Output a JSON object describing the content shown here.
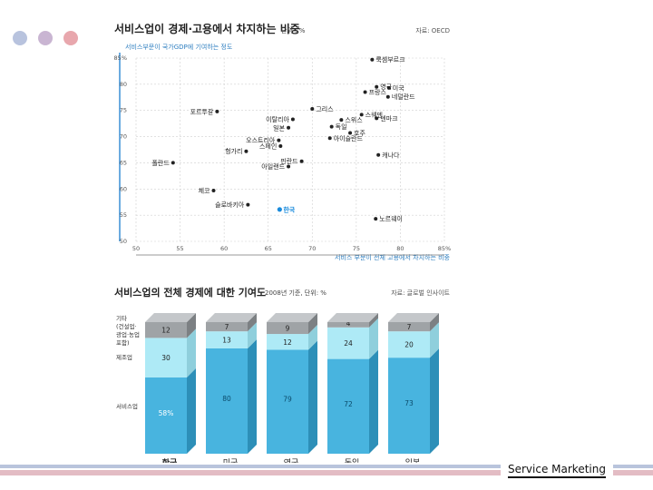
{
  "colors": {
    "dot1": "#b8c3de",
    "dot2": "#c9b5d2",
    "dot3": "#e8a7ad",
    "accent": "#3a8fd6",
    "bar_service": "#48b4df",
    "bar_manufacturing": "#aeeaf6",
    "bar_other": "#9fa3a6",
    "korea": "#1a8bdc"
  },
  "footer": {
    "text": "Service Marketing"
  },
  "chart_data": [
    {
      "type": "scatter",
      "title": "서비스업이 경제·고용에서 차지하는 비중",
      "unit": "단위 : %",
      "source": "자료: OECD",
      "ylabel": "서비스부문이 국가GDP에 기여하는 정도",
      "xlabel": "서비스 부문이 전체 고용에서 차지하는 비중",
      "xlim": [
        50,
        85
      ],
      "ylim": [
        50,
        85
      ],
      "x_ticks": [
        "50",
        "55",
        "60",
        "65",
        "70",
        "75",
        "80",
        "85%"
      ],
      "y_ticks": [
        "85%",
        "80",
        "75",
        "70",
        "65",
        "60",
        "55",
        "50"
      ],
      "grid": true,
      "points": [
        {
          "label": "룩셈부르크",
          "x": 76.8,
          "y": 84.7
        },
        {
          "label": "영국",
          "x": 77.3,
          "y": 79.5
        },
        {
          "label": "미국",
          "x": 78.7,
          "y": 79.3
        },
        {
          "label": "프랑스",
          "x": 76.0,
          "y": 78.5
        },
        {
          "label": "네덜란드",
          "x": 78.6,
          "y": 77.6
        },
        {
          "label": "포르투갈",
          "x": 59.2,
          "y": 74.8
        },
        {
          "label": "그리스",
          "x": 70.0,
          "y": 75.3
        },
        {
          "label": "스웨덴",
          "x": 75.6,
          "y": 74.2
        },
        {
          "label": "덴마크",
          "x": 77.3,
          "y": 73.5
        },
        {
          "label": "이탈리아",
          "x": 67.8,
          "y": 73.3
        },
        {
          "label": "스위스",
          "x": 73.3,
          "y": 73.2
        },
        {
          "label": "일본",
          "x": 67.3,
          "y": 71.7
        },
        {
          "label": "독일",
          "x": 72.2,
          "y": 71.9
        },
        {
          "label": "호주",
          "x": 74.3,
          "y": 70.7
        },
        {
          "label": "오스트리아",
          "x": 66.2,
          "y": 69.3
        },
        {
          "label": "스페인",
          "x": 66.4,
          "y": 68.2
        },
        {
          "label": "아이슬란드",
          "x": 72.0,
          "y": 69.7
        },
        {
          "label": "헝가리",
          "x": 62.5,
          "y": 67.2
        },
        {
          "label": "핀란드",
          "x": 68.8,
          "y": 65.3
        },
        {
          "label": "캐나다",
          "x": 77.5,
          "y": 66.5
        },
        {
          "label": "폴란드",
          "x": 54.2,
          "y": 65.0
        },
        {
          "label": "아일랜드",
          "x": 67.3,
          "y": 64.3
        },
        {
          "label": "체코",
          "x": 58.8,
          "y": 59.7
        },
        {
          "label": "슬로바키아",
          "x": 62.7,
          "y": 57.0
        },
        {
          "label": "한국",
          "x": 66.3,
          "y": 56.1,
          "highlight": true
        },
        {
          "label": "노르웨이",
          "x": 77.2,
          "y": 54.3
        }
      ]
    },
    {
      "type": "bar",
      "stacked": true,
      "title": "서비스업의 전체 경제에 대한 기여도",
      "subtitle": "2008년 기준, 단위: %",
      "source": "자료: 글로벌 인사이트",
      "categories": [
        "한국",
        "미국",
        "영국",
        "독일",
        "일본"
      ],
      "segment_labels": [
        "서비스업",
        "제조업",
        "기타 (건설업·광업·농업 포함)"
      ],
      "series": [
        {
          "name": "서비스업",
          "values": [
            58,
            80,
            79,
            72,
            73
          ]
        },
        {
          "name": "제조업",
          "values": [
            30,
            13,
            12,
            24,
            20
          ]
        },
        {
          "name": "기타",
          "values": [
            12,
            7,
            9,
            4,
            7
          ]
        }
      ]
    }
  ]
}
